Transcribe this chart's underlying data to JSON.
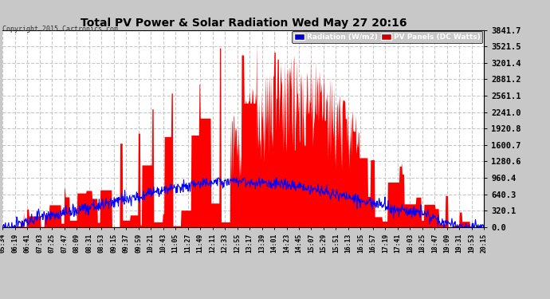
{
  "title": "Total PV Power & Solar Radiation Wed May 27 20:16",
  "copyright": "Copyright 2015 Cartronics.com",
  "background_color": "#c8c8c8",
  "plot_bg_color": "#ffffff",
  "y_max": 3841.7,
  "y_ticks": [
    0.0,
    320.1,
    640.3,
    960.4,
    1280.6,
    1600.7,
    1920.8,
    2241.0,
    2561.1,
    2881.2,
    3201.4,
    3521.5,
    3841.7
  ],
  "x_labels": [
    "05:34",
    "06:19",
    "06:41",
    "07:03",
    "07:25",
    "07:47",
    "08:09",
    "08:31",
    "08:53",
    "09:15",
    "09:37",
    "09:59",
    "10:21",
    "10:43",
    "11:05",
    "11:27",
    "11:49",
    "12:11",
    "12:33",
    "12:55",
    "13:17",
    "13:39",
    "14:01",
    "14:23",
    "14:45",
    "15:07",
    "15:29",
    "15:51",
    "16:13",
    "16:35",
    "16:57",
    "17:19",
    "17:41",
    "18:03",
    "18:25",
    "18:47",
    "19:09",
    "19:31",
    "19:53",
    "20:15"
  ],
  "legend_radiation_bg": "#0000cc",
  "legend_pv_bg": "#cc0000",
  "grid_color": "#c8c8c8",
  "line_color": "#0000ff",
  "fill_color": "#ff0000",
  "n_points": 900
}
